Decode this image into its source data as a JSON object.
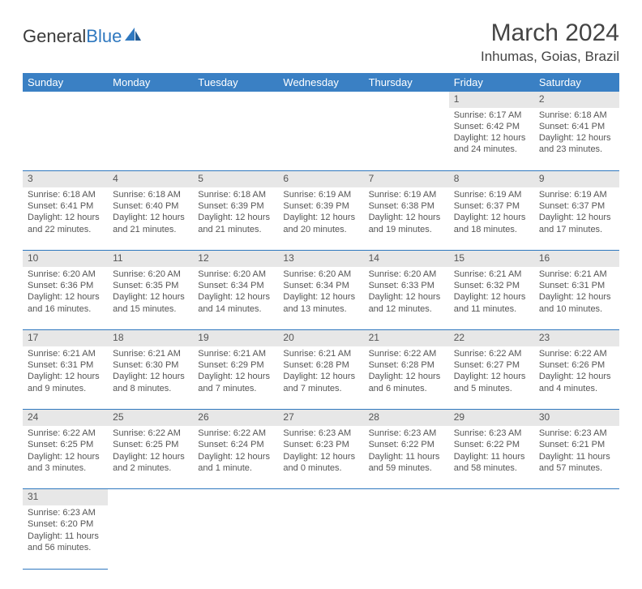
{
  "logo": {
    "text1": "General",
    "text2": "Blue"
  },
  "title": "March 2024",
  "location": "Inhumas, Goias, Brazil",
  "colors": {
    "header_bg": "#3a80c4",
    "header_text": "#ffffff",
    "daynum_bg": "#e7e7e7",
    "border": "#2f78bf",
    "logo_accent": "#2f78bf",
    "body_text": "#555"
  },
  "weekdays": [
    "Sunday",
    "Monday",
    "Tuesday",
    "Wednesday",
    "Thursday",
    "Friday",
    "Saturday"
  ],
  "weeks": [
    {
      "nums": [
        "",
        "",
        "",
        "",
        "",
        "1",
        "2"
      ],
      "cells": [
        null,
        null,
        null,
        null,
        null,
        {
          "sunrise": "Sunrise: 6:17 AM",
          "sunset": "Sunset: 6:42 PM",
          "dl1": "Daylight: 12 hours",
          "dl2": "and 24 minutes."
        },
        {
          "sunrise": "Sunrise: 6:18 AM",
          "sunset": "Sunset: 6:41 PM",
          "dl1": "Daylight: 12 hours",
          "dl2": "and 23 minutes."
        }
      ]
    },
    {
      "nums": [
        "3",
        "4",
        "5",
        "6",
        "7",
        "8",
        "9"
      ],
      "cells": [
        {
          "sunrise": "Sunrise: 6:18 AM",
          "sunset": "Sunset: 6:41 PM",
          "dl1": "Daylight: 12 hours",
          "dl2": "and 22 minutes."
        },
        {
          "sunrise": "Sunrise: 6:18 AM",
          "sunset": "Sunset: 6:40 PM",
          "dl1": "Daylight: 12 hours",
          "dl2": "and 21 minutes."
        },
        {
          "sunrise": "Sunrise: 6:18 AM",
          "sunset": "Sunset: 6:39 PM",
          "dl1": "Daylight: 12 hours",
          "dl2": "and 21 minutes."
        },
        {
          "sunrise": "Sunrise: 6:19 AM",
          "sunset": "Sunset: 6:39 PM",
          "dl1": "Daylight: 12 hours",
          "dl2": "and 20 minutes."
        },
        {
          "sunrise": "Sunrise: 6:19 AM",
          "sunset": "Sunset: 6:38 PM",
          "dl1": "Daylight: 12 hours",
          "dl2": "and 19 minutes."
        },
        {
          "sunrise": "Sunrise: 6:19 AM",
          "sunset": "Sunset: 6:37 PM",
          "dl1": "Daylight: 12 hours",
          "dl2": "and 18 minutes."
        },
        {
          "sunrise": "Sunrise: 6:19 AM",
          "sunset": "Sunset: 6:37 PM",
          "dl1": "Daylight: 12 hours",
          "dl2": "and 17 minutes."
        }
      ]
    },
    {
      "nums": [
        "10",
        "11",
        "12",
        "13",
        "14",
        "15",
        "16"
      ],
      "cells": [
        {
          "sunrise": "Sunrise: 6:20 AM",
          "sunset": "Sunset: 6:36 PM",
          "dl1": "Daylight: 12 hours",
          "dl2": "and 16 minutes."
        },
        {
          "sunrise": "Sunrise: 6:20 AM",
          "sunset": "Sunset: 6:35 PM",
          "dl1": "Daylight: 12 hours",
          "dl2": "and 15 minutes."
        },
        {
          "sunrise": "Sunrise: 6:20 AM",
          "sunset": "Sunset: 6:34 PM",
          "dl1": "Daylight: 12 hours",
          "dl2": "and 14 minutes."
        },
        {
          "sunrise": "Sunrise: 6:20 AM",
          "sunset": "Sunset: 6:34 PM",
          "dl1": "Daylight: 12 hours",
          "dl2": "and 13 minutes."
        },
        {
          "sunrise": "Sunrise: 6:20 AM",
          "sunset": "Sunset: 6:33 PM",
          "dl1": "Daylight: 12 hours",
          "dl2": "and 12 minutes."
        },
        {
          "sunrise": "Sunrise: 6:21 AM",
          "sunset": "Sunset: 6:32 PM",
          "dl1": "Daylight: 12 hours",
          "dl2": "and 11 minutes."
        },
        {
          "sunrise": "Sunrise: 6:21 AM",
          "sunset": "Sunset: 6:31 PM",
          "dl1": "Daylight: 12 hours",
          "dl2": "and 10 minutes."
        }
      ]
    },
    {
      "nums": [
        "17",
        "18",
        "19",
        "20",
        "21",
        "22",
        "23"
      ],
      "cells": [
        {
          "sunrise": "Sunrise: 6:21 AM",
          "sunset": "Sunset: 6:31 PM",
          "dl1": "Daylight: 12 hours",
          "dl2": "and 9 minutes."
        },
        {
          "sunrise": "Sunrise: 6:21 AM",
          "sunset": "Sunset: 6:30 PM",
          "dl1": "Daylight: 12 hours",
          "dl2": "and 8 minutes."
        },
        {
          "sunrise": "Sunrise: 6:21 AM",
          "sunset": "Sunset: 6:29 PM",
          "dl1": "Daylight: 12 hours",
          "dl2": "and 7 minutes."
        },
        {
          "sunrise": "Sunrise: 6:21 AM",
          "sunset": "Sunset: 6:28 PM",
          "dl1": "Daylight: 12 hours",
          "dl2": "and 7 minutes."
        },
        {
          "sunrise": "Sunrise: 6:22 AM",
          "sunset": "Sunset: 6:28 PM",
          "dl1": "Daylight: 12 hours",
          "dl2": "and 6 minutes."
        },
        {
          "sunrise": "Sunrise: 6:22 AM",
          "sunset": "Sunset: 6:27 PM",
          "dl1": "Daylight: 12 hours",
          "dl2": "and 5 minutes."
        },
        {
          "sunrise": "Sunrise: 6:22 AM",
          "sunset": "Sunset: 6:26 PM",
          "dl1": "Daylight: 12 hours",
          "dl2": "and 4 minutes."
        }
      ]
    },
    {
      "nums": [
        "24",
        "25",
        "26",
        "27",
        "28",
        "29",
        "30"
      ],
      "cells": [
        {
          "sunrise": "Sunrise: 6:22 AM",
          "sunset": "Sunset: 6:25 PM",
          "dl1": "Daylight: 12 hours",
          "dl2": "and 3 minutes."
        },
        {
          "sunrise": "Sunrise: 6:22 AM",
          "sunset": "Sunset: 6:25 PM",
          "dl1": "Daylight: 12 hours",
          "dl2": "and 2 minutes."
        },
        {
          "sunrise": "Sunrise: 6:22 AM",
          "sunset": "Sunset: 6:24 PM",
          "dl1": "Daylight: 12 hours",
          "dl2": "and 1 minute."
        },
        {
          "sunrise": "Sunrise: 6:23 AM",
          "sunset": "Sunset: 6:23 PM",
          "dl1": "Daylight: 12 hours",
          "dl2": "and 0 minutes."
        },
        {
          "sunrise": "Sunrise: 6:23 AM",
          "sunset": "Sunset: 6:22 PM",
          "dl1": "Daylight: 11 hours",
          "dl2": "and 59 minutes."
        },
        {
          "sunrise": "Sunrise: 6:23 AM",
          "sunset": "Sunset: 6:22 PM",
          "dl1": "Daylight: 11 hours",
          "dl2": "and 58 minutes."
        },
        {
          "sunrise": "Sunrise: 6:23 AM",
          "sunset": "Sunset: 6:21 PM",
          "dl1": "Daylight: 11 hours",
          "dl2": "and 57 minutes."
        }
      ]
    },
    {
      "nums": [
        "31",
        "",
        "",
        "",
        "",
        "",
        ""
      ],
      "cells": [
        {
          "sunrise": "Sunrise: 6:23 AM",
          "sunset": "Sunset: 6:20 PM",
          "dl1": "Daylight: 11 hours",
          "dl2": "and 56 minutes."
        },
        null,
        null,
        null,
        null,
        null,
        null
      ]
    }
  ]
}
